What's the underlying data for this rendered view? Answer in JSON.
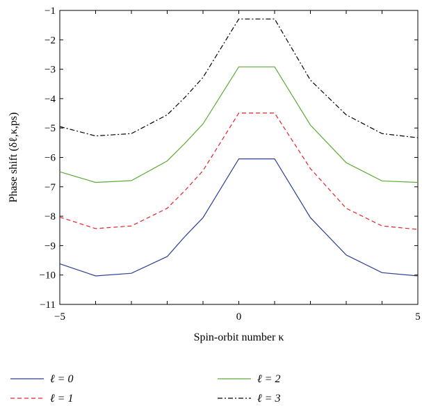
{
  "chart_data": {
    "type": "line",
    "title": "",
    "xlabel": "Spin-orbit number κ",
    "ylabel": "Phase shift (δℓ,κ,ps)",
    "xlim": [
      -5,
      5
    ],
    "ylim": [
      -11,
      -1
    ],
    "xticks": [
      "−5",
      "0",
      "5"
    ],
    "yticks": [
      "−1",
      "−2",
      "−3",
      "−4",
      "−5",
      "−6",
      "−7",
      "−8",
      "−9",
      "−10",
      "−11"
    ],
    "grid": false,
    "legend_position": "bottom",
    "x": [
      -5,
      -4,
      -3,
      -2,
      -1.5,
      -1,
      0,
      1,
      2,
      3,
      4,
      5
    ],
    "series": [
      {
        "name": "ℓ = 0",
        "color": "#2b3f93",
        "dash": "solid",
        "values": [
          -9.62,
          -10.03,
          -9.94,
          -9.37,
          -8.68,
          -8.05,
          -6.05,
          -6.05,
          -8.05,
          -9.32,
          -9.92,
          -10.03
        ]
      },
      {
        "name": "ℓ = 1",
        "color": "#e8202a",
        "dash": "dashed",
        "values": [
          -8.03,
          -8.42,
          -8.33,
          -7.73,
          -7.12,
          -6.45,
          -4.49,
          -4.49,
          -6.38,
          -7.73,
          -8.33,
          -8.45
        ]
      },
      {
        "name": "ℓ = 2",
        "color": "#5aab37",
        "dash": "solid",
        "values": [
          -6.49,
          -6.85,
          -6.79,
          -6.12,
          -5.51,
          -4.86,
          -2.92,
          -2.92,
          -4.9,
          -6.18,
          -6.8,
          -6.85
        ]
      },
      {
        "name": "ℓ = 3",
        "color": "#000000",
        "dash": "dashdot",
        "values": [
          -4.95,
          -5.27,
          -5.19,
          -4.55,
          -3.95,
          -3.28,
          -1.29,
          -1.29,
          -3.37,
          -4.55,
          -5.19,
          -5.33
        ]
      }
    ]
  }
}
